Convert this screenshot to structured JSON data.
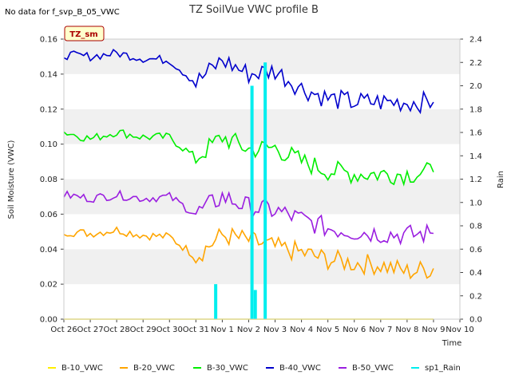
{
  "header": {
    "title": "TZ SoilVue VWC profile B",
    "nodata_note": "No data for f_svp_B_05_VWC",
    "badge": "TZ_sm"
  },
  "colors": {
    "B-10_VWC": "#ffee00",
    "B-20_VWC": "#ffa500",
    "B-30_VWC": "#00ee00",
    "B-40_VWC": "#0000cc",
    "B-50_VWC": "#9a1ee0",
    "sp1_Rain": "#00eeee",
    "band": "#f0f0f0",
    "badge_fill": "#ffffcc",
    "badge_border": "#aa0000"
  },
  "chart_data": {
    "type": "line",
    "xlabel": "Time",
    "ylabel": "Soil Moisture (VWC)",
    "y2label": "Rain",
    "ylim": [
      0.0,
      0.16
    ],
    "y2lim": [
      0.0,
      2.4
    ],
    "yticks": [
      "0.00",
      "0.02",
      "0.04",
      "0.06",
      "0.08",
      "0.10",
      "0.12",
      "0.14",
      "0.16"
    ],
    "y2ticks": [
      "0.0",
      "0.2",
      "0.4",
      "0.6",
      "0.8",
      "1.0",
      "1.2",
      "1.4",
      "1.6",
      "1.8",
      "2.0",
      "2.2",
      "2.4"
    ],
    "x_tick_labels": [
      "Oct 26",
      "Oct 27",
      "Oct 28",
      "Oct 29",
      "Oct 30",
      "Oct 31",
      "Nov 1",
      "Nov 2",
      "Nov 3",
      "Nov 4",
      "Nov 5",
      "Nov 6",
      "Nov 7",
      "Nov 8",
      "Nov 9",
      "Nov 10"
    ],
    "x": [
      "Oct 26",
      "Oct 27",
      "Oct 28",
      "Oct 29",
      "Oct 30",
      "Oct 31",
      "Nov 1",
      "Nov 2",
      "Nov 3",
      "Nov 4",
      "Nov 5",
      "Nov 6",
      "Nov 7",
      "Nov 8",
      "Nov 9"
    ],
    "series": [
      {
        "name": "B-10_VWC",
        "axis": "left",
        "values": [
          0.0,
          0.0,
          0.0,
          0.0,
          0.0,
          0.0,
          0.0,
          0.0,
          0.0,
          0.0,
          0.0,
          0.0,
          0.0,
          0.0,
          0.0
        ]
      },
      {
        "name": "B-20_VWC",
        "axis": "left",
        "values": [
          0.05,
          0.049,
          0.051,
          0.048,
          0.047,
          0.036,
          0.048,
          0.045,
          0.041,
          0.038,
          0.034,
          0.032,
          0.031,
          0.027,
          0.029
        ]
      },
      {
        "name": "B-30_VWC",
        "axis": "left",
        "values": [
          0.107,
          0.103,
          0.107,
          0.104,
          0.104,
          0.092,
          0.104,
          0.097,
          0.098,
          0.09,
          0.085,
          0.083,
          0.083,
          0.083,
          0.084
        ]
      },
      {
        "name": "B-40_VWC",
        "axis": "left",
        "values": [
          0.151,
          0.15,
          0.152,
          0.149,
          0.148,
          0.135,
          0.148,
          0.14,
          0.142,
          0.132,
          0.126,
          0.124,
          0.124,
          0.124,
          0.124
        ]
      },
      {
        "name": "B-50_VWC",
        "axis": "left",
        "values": [
          0.071,
          0.069,
          0.071,
          0.069,
          0.07,
          0.06,
          0.07,
          0.064,
          0.062,
          0.057,
          0.052,
          0.05,
          0.049,
          0.048,
          0.049
        ]
      },
      {
        "name": "sp1_Rain",
        "axis": "right",
        "events": [
          {
            "x": "Oct 31 18:00",
            "value": 0.3
          },
          {
            "x": "Nov 2 03:00",
            "value": 2.0
          },
          {
            "x": "Nov 2 06:00",
            "value": 0.25
          },
          {
            "x": "Nov 2 15:00",
            "value": 2.2
          }
        ]
      }
    ],
    "legend": [
      "B-10_VWC",
      "B-20_VWC",
      "B-30_VWC",
      "B-40_VWC",
      "B-50_VWC",
      "sp1_Rain"
    ],
    "legend_position": "bottom",
    "grid": "horizontal bands"
  }
}
